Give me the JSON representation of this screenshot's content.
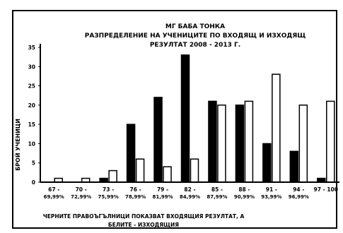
{
  "chart_data": {
    "type": "bar",
    "title_lines": [
      "МГ БАБА ТОНКА",
      "РАЗПРЕДЕЛЕНИЕ НА УЧЕНИЦИТЕ ПО ВХОДЯЩ И ИЗХОДЯЩ",
      "РЕЗУЛТАТ 2008 - 2013 Г."
    ],
    "ylabel": "БРОЙ УЧЕНИЦИ",
    "ylim": [
      0,
      35
    ],
    "yticks": [
      0,
      5,
      10,
      15,
      20,
      25,
      30,
      35
    ],
    "categories": [
      {
        "line1": "67 -",
        "line2": "69,99%"
      },
      {
        "line1": "70 -",
        "line2": "72,99%"
      },
      {
        "line1": "73 -",
        "line2": "75,99%"
      },
      {
        "line1": "76 -",
        "line2": "78,99%"
      },
      {
        "line1": "79 -",
        "line2": "81,99%"
      },
      {
        "line1": "82 -",
        "line2": "84,99%"
      },
      {
        "line1": "85 -",
        "line2": "87,99%"
      },
      {
        "line1": "88 -",
        "line2": "90,99%"
      },
      {
        "line1": "91 -",
        "line2": "93,99%"
      },
      {
        "line1": "94 -",
        "line2": "96,99%"
      },
      {
        "line1": "97 - 100",
        "line2": ""
      }
    ],
    "series": [
      {
        "values": [
          0,
          0,
          1,
          15,
          22,
          33,
          21,
          20,
          10,
          8,
          1
        ],
        "color": "#000000"
      },
      {
        "values": [
          1,
          1,
          3,
          6,
          4,
          6,
          20,
          21,
          28,
          20,
          21
        ],
        "color": "#ffffff"
      }
    ],
    "note_lines": [
      "ЧЕРНИТЕ ПРАВОЪГЪЛНИЦИ ПОКАЗВАТ ВХОДЯЩИЯ РЕЗУЛТАТ, А",
      "БЕЛИТЕ - ИЗХОДЯЩИЯ"
    ]
  }
}
